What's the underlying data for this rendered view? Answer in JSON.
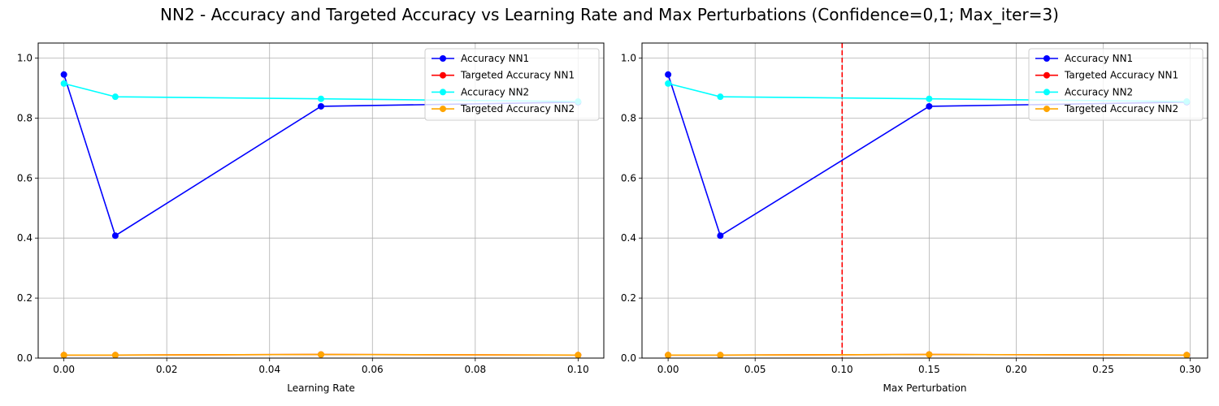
{
  "title": "NN2 - Accuracy and Targeted Accuracy vs Learning Rate and Max Perturbations (Confidence=0,1; Max_iter=3)",
  "chart_data": [
    {
      "type": "line",
      "xlabel": "Learning Rate",
      "ylabel": "",
      "xlim": [
        -0.005,
        0.105
      ],
      "ylim": [
        0,
        1.05
      ],
      "xticks": [
        "0.00",
        "0.02",
        "0.04",
        "0.06",
        "0.08",
        "0.10"
      ],
      "yticks": [
        "0.0",
        "0.2",
        "0.4",
        "0.6",
        "0.8",
        "1.0"
      ],
      "grid": true,
      "legend_position": "top-right",
      "x": [
        0.0,
        0.01,
        0.05,
        0.1
      ],
      "series": [
        {
          "name": "Accuracy NN1",
          "color": "#0000ff",
          "values": [
            0.945,
            0.408,
            0.839,
            0.853
          ]
        },
        {
          "name": "Targeted Accuracy NN1",
          "color": "#ff0000",
          "values": [
            0.01,
            0.01,
            0.012,
            0.01
          ]
        },
        {
          "name": "Accuracy NN2",
          "color": "#00ffff",
          "values": [
            0.915,
            0.871,
            0.864,
            0.855
          ]
        },
        {
          "name": "Targeted Accuracy NN2",
          "color": "#ffa500",
          "values": [
            0.01,
            0.01,
            0.012,
            0.01
          ]
        }
      ]
    },
    {
      "type": "line",
      "xlabel": "Max Perturbation",
      "ylabel": "",
      "xlim": [
        -0.015,
        0.31
      ],
      "ylim": [
        0,
        1.05
      ],
      "xticks": [
        "0.00",
        "0.05",
        "0.10",
        "0.15",
        "0.20",
        "0.25",
        "0.30"
      ],
      "yticks": [
        "0.0",
        "0.2",
        "0.4",
        "0.6",
        "0.8",
        "1.0"
      ],
      "grid": true,
      "legend_position": "top-right",
      "vline": {
        "x": 0.1,
        "color": "#ff0000",
        "style": "dashed"
      },
      "x": [
        0.0,
        0.03,
        0.15,
        0.298
      ],
      "series": [
        {
          "name": "Accuracy NN1",
          "color": "#0000ff",
          "values": [
            0.945,
            0.408,
            0.839,
            0.853
          ]
        },
        {
          "name": "Targeted Accuracy NN1",
          "color": "#ff0000",
          "values": [
            0.01,
            0.01,
            0.012,
            0.01
          ]
        },
        {
          "name": "Accuracy NN2",
          "color": "#00ffff",
          "values": [
            0.915,
            0.871,
            0.864,
            0.855
          ]
        },
        {
          "name": "Targeted Accuracy NN2",
          "color": "#ffa500",
          "values": [
            0.01,
            0.01,
            0.012,
            0.01
          ]
        }
      ]
    }
  ]
}
